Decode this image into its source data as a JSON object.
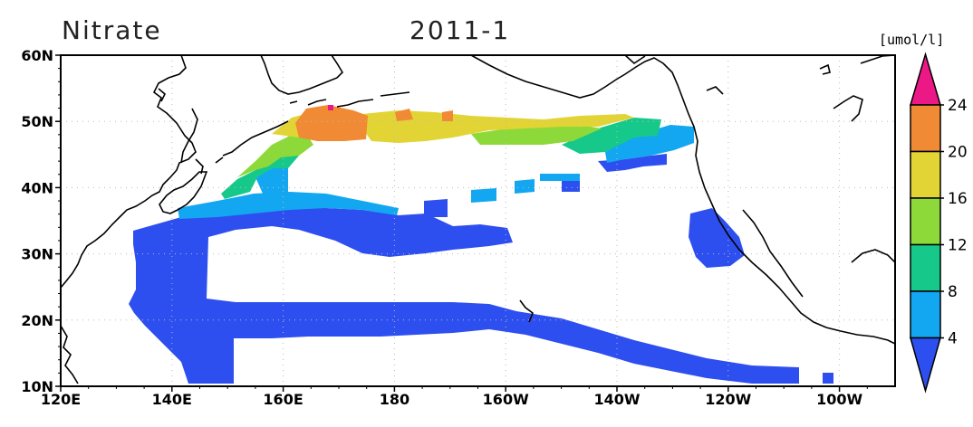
{
  "map": {
    "title": "Nitrate",
    "date": "2011-1",
    "units": "[umol/l]",
    "lon_labels": [
      "120E",
      "140E",
      "160E",
      "180",
      "160W",
      "140W",
      "120W",
      "100W"
    ],
    "lat_labels": [
      "60N",
      "50N",
      "40N",
      "30N",
      "20N",
      "10N"
    ],
    "lon_range": [
      120,
      270
    ],
    "lat_range": [
      10,
      60
    ]
  },
  "colorbar": {
    "ticks": [
      "4",
      "8",
      "12",
      "16",
      "20",
      "24"
    ],
    "colors": [
      "#2d4ff0",
      "#12a7f0",
      "#16c98a",
      "#8ed93a",
      "#e3d435",
      "#f08a34",
      "#ec1885"
    ]
  },
  "chart_data": {
    "type": "heatmap",
    "title": "Nitrate",
    "subtitle": "2011-1",
    "units": "[umol/l]",
    "xlim": [
      120,
      270
    ],
    "ylim": [
      10,
      60
    ],
    "levels": [
      4,
      8,
      12,
      16,
      20,
      24
    ],
    "regions": [
      {
        "level_range": "<4",
        "description": "broad tropical and subtropical bands"
      },
      {
        "level_range": "4-8",
        "description": "transition zone around 35-40N"
      },
      {
        "level_range": "8-20",
        "description": "subarctic band 40-50N"
      },
      {
        "level_range": "20-24",
        "description": "western subarctic near 50N 160E-175E"
      },
      {
        "level_range": ">24",
        "description": "small patch near 52N 165E"
      }
    ]
  }
}
